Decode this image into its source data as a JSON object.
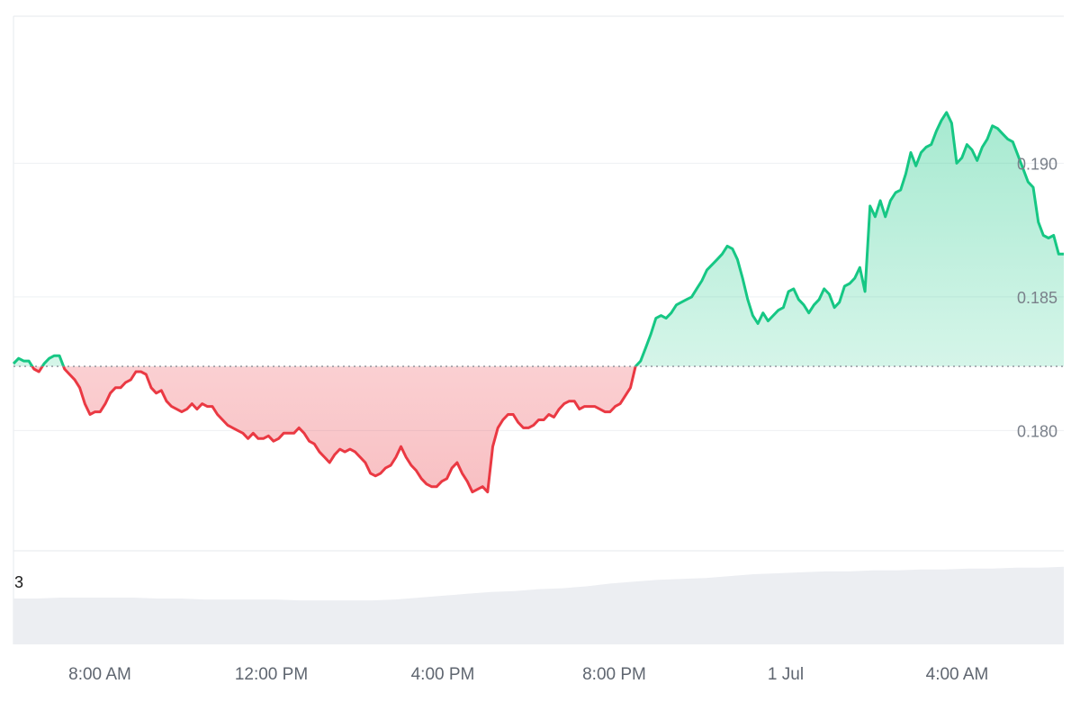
{
  "chart_data": {
    "type": "area",
    "x_tick_labels": [
      "8:00 AM",
      "12:00 PM",
      "4:00 PM",
      "8:00 PM",
      "1 Jul",
      "4:00 AM"
    ],
    "y_tick_labels": [
      "0.180",
      "0.185",
      "0.190"
    ],
    "ylim": [
      0.1755,
      0.1955
    ],
    "baseline": 0.1824,
    "grid": true,
    "colors": {
      "above": "#16c784",
      "below": "#ea3943",
      "grid": "#eef0f3",
      "volume": "#eceef2"
    },
    "price_series": [
      0.1825,
      0.1827,
      0.1826,
      0.1826,
      0.1823,
      0.1822,
      0.1825,
      0.1827,
      0.1828,
      0.1828,
      0.1823,
      0.1821,
      0.1819,
      0.1816,
      0.181,
      0.1806,
      0.1807,
      0.1807,
      0.181,
      0.1814,
      0.1816,
      0.1816,
      0.1818,
      0.1819,
      0.1822,
      0.1822,
      0.1821,
      0.1816,
      0.1814,
      0.1815,
      0.1811,
      0.1809,
      0.1808,
      0.1807,
      0.1808,
      0.181,
      0.1808,
      0.181,
      0.1809,
      0.1809,
      0.1806,
      0.1804,
      0.1802,
      0.1801,
      0.18,
      0.1799,
      0.1797,
      0.1799,
      0.1797,
      0.1797,
      0.1798,
      0.1796,
      0.1797,
      0.1799,
      0.1799,
      0.1799,
      0.1801,
      0.1799,
      0.1796,
      0.1795,
      0.1792,
      0.179,
      0.1788,
      0.1791,
      0.1793,
      0.1792,
      0.1793,
      0.1792,
      0.179,
      0.1788,
      0.1784,
      0.1783,
      0.1784,
      0.1786,
      0.1787,
      0.179,
      0.1794,
      0.179,
      0.1787,
      0.1785,
      0.1782,
      0.178,
      0.1779,
      0.1779,
      0.1781,
      0.1782,
      0.1786,
      0.1788,
      0.1784,
      0.1781,
      0.1777,
      0.1778,
      0.1779,
      0.1777,
      0.1794,
      0.1801,
      0.1804,
      0.1806,
      0.1806,
      0.1803,
      0.1801,
      0.1801,
      0.1802,
      0.1804,
      0.1804,
      0.1806,
      0.1805,
      0.1808,
      0.181,
      0.1811,
      0.1811,
      0.1808,
      0.1809,
      0.1809,
      0.1809,
      0.1808,
      0.1807,
      0.1807,
      0.1809,
      0.181,
      0.1813,
      0.1816,
      0.1824,
      0.1826,
      0.1831,
      0.1836,
      0.1842,
      0.1843,
      0.1842,
      0.1844,
      0.1847,
      0.1848,
      0.1849,
      0.185,
      0.1853,
      0.1856,
      0.186,
      0.1862,
      0.1864,
      0.1866,
      0.1869,
      0.1868,
      0.1864,
      0.1857,
      0.1849,
      0.1843,
      0.184,
      0.1844,
      0.1841,
      0.1843,
      0.1845,
      0.1846,
      0.1852,
      0.1853,
      0.1849,
      0.1847,
      0.1844,
      0.1847,
      0.1849,
      0.1853,
      0.1851,
      0.1846,
      0.1848,
      0.1854,
      0.1855,
      0.1857,
      0.1861,
      0.1852,
      0.1884,
      0.188,
      0.1886,
      0.188,
      0.1886,
      0.1889,
      0.189,
      0.1896,
      0.1904,
      0.1899,
      0.1904,
      0.1906,
      0.1907,
      0.1912,
      0.1916,
      0.1919,
      0.1915,
      0.19,
      0.1902,
      0.1907,
      0.1905,
      0.1901,
      0.1906,
      0.1909,
      0.1914,
      0.1913,
      0.1911,
      0.1909,
      0.1908,
      0.1903,
      0.1898,
      0.1893,
      0.1891,
      0.1878,
      0.1873,
      0.1872,
      0.1873,
      0.1866,
      0.1866
    ],
    "volume_series": [
      0.49,
      0.49,
      0.5,
      0.5,
      0.5,
      0.5,
      0.49,
      0.49,
      0.48,
      0.48,
      0.48,
      0.48,
      0.47,
      0.47,
      0.47,
      0.47,
      0.48,
      0.5,
      0.52,
      0.54,
      0.56,
      0.57,
      0.59,
      0.6,
      0.62,
      0.65,
      0.67,
      0.69,
      0.7,
      0.71,
      0.73,
      0.75,
      0.76,
      0.77,
      0.78,
      0.78,
      0.79,
      0.79,
      0.8,
      0.8,
      0.81,
      0.81,
      0.82,
      0.82,
      0.83
    ]
  },
  "volume_label": "3"
}
